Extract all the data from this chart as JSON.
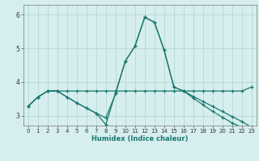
{
  "background_color": "#d6eeee",
  "grid_color": "#aed4d4",
  "line_color": "#1a7870",
  "xlabel": "Humidex (Indice chaleur)",
  "xlim": [
    -0.5,
    23.5
  ],
  "ylim": [
    2.7,
    6.3
  ],
  "yticks": [
    3,
    4,
    5,
    6
  ],
  "xticks": [
    0,
    1,
    2,
    3,
    4,
    5,
    6,
    7,
    8,
    9,
    10,
    11,
    12,
    13,
    14,
    15,
    16,
    17,
    18,
    19,
    20,
    21,
    22,
    23
  ],
  "lines": [
    {
      "x": [
        0,
        1,
        2,
        3,
        4,
        5,
        6,
        7,
        8,
        9,
        10,
        11,
        12,
        13,
        14,
        15,
        16,
        17,
        18,
        19,
        20,
        21,
        22,
        23
      ],
      "y": [
        3.28,
        3.55,
        3.73,
        3.73,
        3.73,
        3.73,
        3.73,
        3.73,
        3.73,
        3.73,
        3.73,
        3.73,
        3.73,
        3.73,
        3.73,
        3.73,
        3.73,
        3.73,
        3.73,
        3.73,
        3.73,
        3.73,
        3.73,
        3.85
      ]
    },
    {
      "x": [
        0,
        1,
        2,
        3,
        4,
        5,
        6,
        7,
        8,
        9,
        10,
        11,
        12,
        13,
        14,
        15,
        16,
        17,
        18,
        19,
        20,
        21,
        22,
        23
      ],
      "y": [
        3.28,
        3.55,
        3.73,
        3.73,
        3.55,
        3.38,
        3.22,
        3.07,
        2.73,
        3.68,
        4.62,
        5.07,
        5.93,
        5.78,
        4.95,
        3.85,
        3.73,
        3.57,
        3.42,
        3.27,
        3.12,
        2.97,
        2.82,
        2.65
      ]
    },
    {
      "x": [
        0,
        1,
        2,
        3,
        4,
        5,
        6,
        7,
        8,
        9,
        10,
        11,
        12,
        13,
        14,
        15,
        16,
        17,
        18,
        19,
        20,
        21,
        22,
        23
      ],
      "y": [
        3.28,
        3.55,
        3.73,
        3.73,
        3.55,
        3.38,
        3.22,
        3.07,
        2.93,
        3.65,
        4.62,
        5.07,
        5.93,
        5.78,
        4.95,
        3.85,
        3.73,
        3.52,
        3.32,
        3.12,
        2.95,
        2.78,
        2.65,
        2.65
      ]
    }
  ]
}
